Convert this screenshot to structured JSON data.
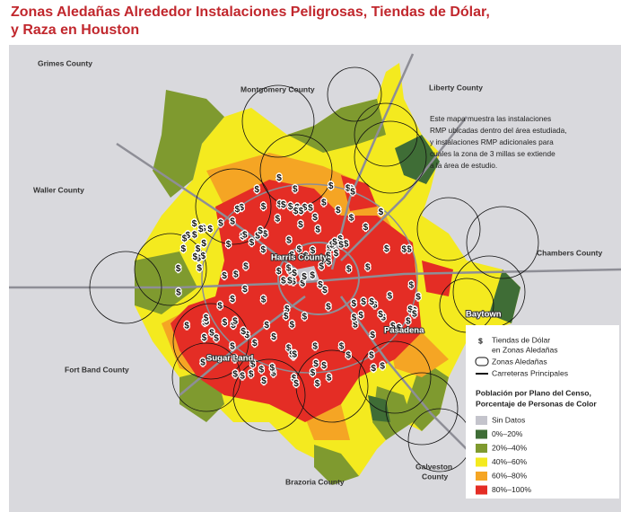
{
  "title": [
    "Zonas Aledañas Alrededor Instalaciones Peligrosas, Tiendas de Dólar,",
    "y Raza en Houston"
  ],
  "annotation": [
    "Este mapa muestra las instalaciones",
    "RMP ubicadas dentro del área estudiada,",
    "y instalaciones RMP adicionales para",
    "cuales la zona de 3 millas se extiende",
    "a la área de estudio."
  ],
  "counties": [
    "Grimes County",
    "Montgomery County",
    "Liberty County",
    "Waller County",
    "Chambers County",
    "Fort Band County",
    "Brazoria County",
    "Harris County"
  ],
  "galveston_county": [
    "Galveston",
    "County"
  ],
  "cities": [
    "Sugar Land",
    "Pasadena",
    "Baytown"
  ],
  "legend": {
    "store_symbol": "$",
    "store_label": [
      "Tiendas de Dólar",
      "en Zonas Aledañas"
    ],
    "buffer_label": "Zonas Aledañas",
    "highway_label": "Carreteras Principales",
    "heading": [
      "Población por Plano del Censo,",
      "Porcentaje de Personas de Color"
    ],
    "classes": [
      {
        "label": "Sin Datos",
        "color": "#c4c4cc"
      },
      {
        "label": "0%–20%",
        "color": "#3f6d36"
      },
      {
        "label": "20%–40%",
        "color": "#7f9a2f"
      },
      {
        "label": "40%–60%",
        "color": "#f4ea1f"
      },
      {
        "label": "60%–80%",
        "color": "#f5a524"
      },
      {
        "label": "80%–100%",
        "color": "#e42d25"
      }
    ]
  }
}
